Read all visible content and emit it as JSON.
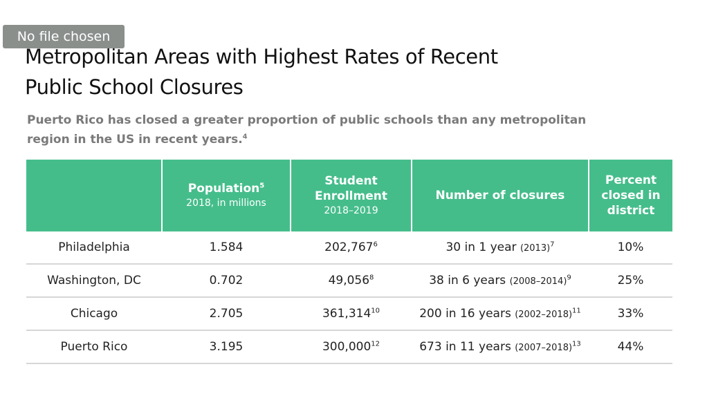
{
  "file_input": {
    "label": "No file chosen"
  },
  "title": "Metropolitan Areas with Highest Rates of Recent Public School Closures",
  "subtitle": "Puerto Rico has closed a greater proportion of public schools than any metropolitan region in the US in recent years.",
  "subtitle_footnote": "4",
  "table": {
    "headers": {
      "col1": "",
      "population": {
        "label": "Population",
        "footnote": "5",
        "sub": "2018, in millions"
      },
      "enrollment": {
        "label": "Student Enrollment",
        "sub": "2018–2019"
      },
      "closures": {
        "label": "Number of closures"
      },
      "percent": {
        "label": "Percent closed in district"
      }
    },
    "rows": [
      {
        "region": "Philadelphia",
        "population": "1.584",
        "enrollment": "202,767",
        "enrollment_fn": "6",
        "closures": "30 in 1 year",
        "closures_period": "(2013)",
        "closures_fn": "7",
        "percent": "10%"
      },
      {
        "region": "Washington, DC",
        "population": "0.702",
        "enrollment": "49,056",
        "enrollment_fn": "8",
        "closures": "38 in 6 years",
        "closures_period": "(2008–2014)",
        "closures_fn": "9",
        "percent": "25%"
      },
      {
        "region": "Chicago",
        "population": "2.705",
        "enrollment": "361,314",
        "enrollment_fn": "10",
        "closures": "200 in 16 years",
        "closures_period": "(2002–2018)",
        "closures_fn": "11",
        "percent": "33%"
      },
      {
        "region": "Puerto Rico",
        "population": "3.195",
        "enrollment": "300,000",
        "enrollment_fn": "12",
        "closures": "673 in 11 years",
        "closures_period": "(2007–2018)",
        "closures_fn": "13",
        "percent": "44%"
      }
    ]
  },
  "colors": {
    "header_bg": "#45bd8b",
    "row_rule": "#d6d6d6",
    "subtitle": "#7a7a7a"
  }
}
